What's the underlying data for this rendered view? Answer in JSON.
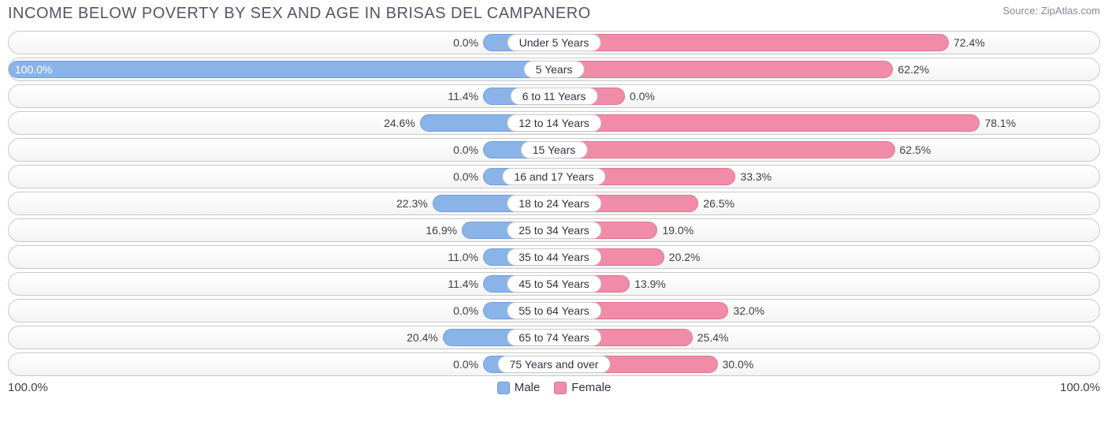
{
  "chart": {
    "type": "diverging-bar",
    "title": "INCOME BELOW POVERTY BY SEX AND AGE IN BRISAS DEL CAMPANERO",
    "source": "Source: ZipAtlas.com",
    "title_fontsize": 20,
    "title_color": "#555566",
    "source_fontsize": 13,
    "source_color": "#888899",
    "background_color": "#ffffff",
    "track_border_color": "#c9c9c9",
    "track_bg_top": "#ffffff",
    "track_bg_bottom": "#f4f4f4",
    "male_color": "#8ab4e8",
    "male_border": "#6f9fd8",
    "female_color": "#f08ca8",
    "female_border": "#e07495",
    "value_fontsize": 14,
    "value_color": "#404048",
    "pill_bg": "#ffffff",
    "pill_border": "#c9c9c9",
    "pill_fontsize": 14,
    "bar_min_pct": 13,
    "axis_left": "100.0%",
    "axis_right": "100.0%",
    "legend": {
      "male": "Male",
      "female": "Female"
    },
    "rows": [
      {
        "category": "Under 5 Years",
        "male": 0.0,
        "male_label": "0.0%",
        "female": 72.4,
        "female_label": "72.4%"
      },
      {
        "category": "5 Years",
        "male": 100.0,
        "male_label": "100.0%",
        "female": 62.2,
        "female_label": "62.2%"
      },
      {
        "category": "6 to 11 Years",
        "male": 11.4,
        "male_label": "11.4%",
        "female": 0.0,
        "female_label": "0.0%"
      },
      {
        "category": "12 to 14 Years",
        "male": 24.6,
        "male_label": "24.6%",
        "female": 78.1,
        "female_label": "78.1%"
      },
      {
        "category": "15 Years",
        "male": 0.0,
        "male_label": "0.0%",
        "female": 62.5,
        "female_label": "62.5%"
      },
      {
        "category": "16 and 17 Years",
        "male": 0.0,
        "male_label": "0.0%",
        "female": 33.3,
        "female_label": "33.3%"
      },
      {
        "category": "18 to 24 Years",
        "male": 22.3,
        "male_label": "22.3%",
        "female": 26.5,
        "female_label": "26.5%"
      },
      {
        "category": "25 to 34 Years",
        "male": 16.9,
        "male_label": "16.9%",
        "female": 19.0,
        "female_label": "19.0%"
      },
      {
        "category": "35 to 44 Years",
        "male": 11.0,
        "male_label": "11.0%",
        "female": 20.2,
        "female_label": "20.2%"
      },
      {
        "category": "45 to 54 Years",
        "male": 11.4,
        "male_label": "11.4%",
        "female": 13.9,
        "female_label": "13.9%"
      },
      {
        "category": "55 to 64 Years",
        "male": 0.0,
        "male_label": "0.0%",
        "female": 32.0,
        "female_label": "32.0%"
      },
      {
        "category": "65 to 74 Years",
        "male": 20.4,
        "male_label": "20.4%",
        "female": 25.4,
        "female_label": "25.4%"
      },
      {
        "category": "75 Years and over",
        "male": 0.0,
        "male_label": "0.0%",
        "female": 30.0,
        "female_label": "30.0%"
      }
    ]
  }
}
